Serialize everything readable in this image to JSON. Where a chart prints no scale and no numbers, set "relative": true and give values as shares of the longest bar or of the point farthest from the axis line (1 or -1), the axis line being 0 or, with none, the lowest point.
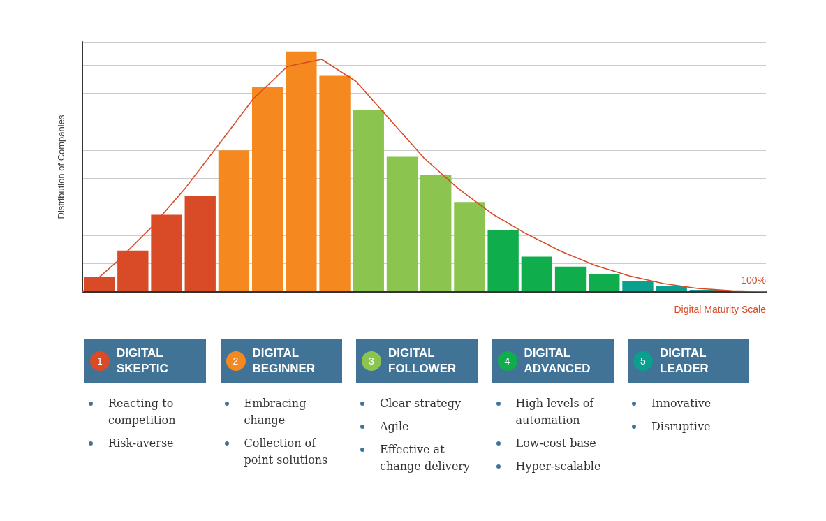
{
  "chart_data": [
    {
      "type": "bar",
      "relative": true,
      "ylabel": "Distribution of Companies",
      "xlabel": "Digital Maturity Scale",
      "annotations": [
        "100%"
      ],
      "grid": "y",
      "categories": [
        null,
        null,
        null,
        null,
        null,
        null,
        null,
        null,
        null,
        null,
        null,
        null,
        null,
        null,
        null,
        null,
        null,
        null,
        null
      ],
      "values": [
        0.063,
        0.172,
        0.321,
        0.398,
        0.589,
        0.853,
        1,
        0.899,
        0.758,
        0.562,
        0.488,
        0.374,
        0.257,
        0.147,
        0.105,
        0.074,
        0.044,
        0.026,
        0.009
      ],
      "colors": [
        "#d94a27",
        "#d94a27",
        "#d94a27",
        "#d94a27",
        "#f5891f",
        "#f5891f",
        "#f5891f",
        "#f5891f",
        "#8bc54f",
        "#8bc54f",
        "#8bc54f",
        "#8bc54f",
        "#0fad4b",
        "#0fad4b",
        "#0fad4b",
        "#0fad4b",
        "#0b9f8e",
        "#0b9f8e",
        "#0b9f8e"
      ]
    },
    {
      "type": "line",
      "relative": true,
      "categories": [
        null,
        null,
        null,
        null,
        null,
        null,
        null,
        null,
        null,
        null,
        null,
        null,
        null,
        null,
        null,
        null,
        null,
        null,
        null,
        null,
        null
      ],
      "series": [
        {
          "color": "#d94a27",
          "values": [
            0,
            0.129,
            0.275,
            0.444,
            0.636,
            0.83,
            0.97,
            1,
            0.906,
            0.741,
            0.575,
            0.444,
            0.335,
            0.249,
            0.175,
            0.114,
            0.069,
            0.036,
            0.015,
            0.005,
            0.002
          ]
        }
      ]
    },
    {
      "type": "other",
      "title": "DIGITAL SKEPTIC",
      "categories": [
        "1"
      ],
      "colors": [
        "#d94a27"
      ],
      "annotations": [
        "Reacting to competition",
        "Risk-averse"
      ]
    },
    {
      "type": "other",
      "title": "DIGITAL BEGINNER",
      "categories": [
        "2"
      ],
      "colors": [
        "#f5891f"
      ],
      "annotations": [
        "Embracing change",
        "Collection of point solutions"
      ]
    },
    {
      "type": "other",
      "title": "DIGITAL FOLLOWER",
      "categories": [
        "3"
      ],
      "colors": [
        "#8bc54f"
      ],
      "annotations": [
        "Clear strategy",
        "Agile",
        "Effective at change delivery"
      ]
    },
    {
      "type": "other",
      "title": "DIGITAL ADVANCED",
      "categories": [
        "4"
      ],
      "colors": [
        "#0fad4b"
      ],
      "annotations": [
        "High levels of automation",
        "Low-cost base",
        "Hyper-scalable"
      ]
    },
    {
      "type": "other",
      "title": "DIGITAL LEADER",
      "categories": [
        "5"
      ],
      "colors": [
        "#0b9f8e"
      ],
      "annotations": [
        "Innovative",
        "Disruptive"
      ]
    }
  ]
}
